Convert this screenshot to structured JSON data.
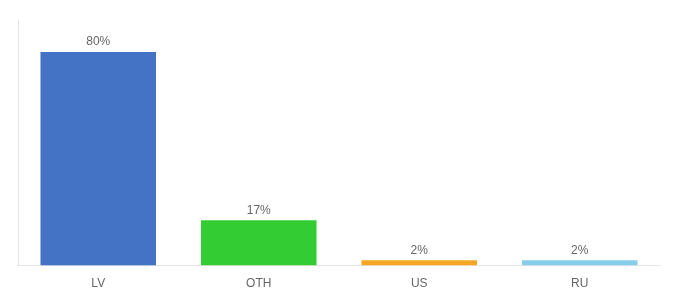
{
  "chart_data": {
    "type": "bar",
    "categories": [
      "LV",
      "OTH",
      "US",
      "RU"
    ],
    "values": [
      80,
      17,
      2,
      2
    ],
    "value_labels": [
      "80%",
      "17%",
      "2%",
      "2%"
    ],
    "colors": [
      "#4472c4",
      "#33cc33",
      "#f5a623",
      "#87ceeb"
    ],
    "ylim": [
      0,
      92
    ],
    "grid": false,
    "data_labels": true,
    "tick_labels": "x"
  }
}
